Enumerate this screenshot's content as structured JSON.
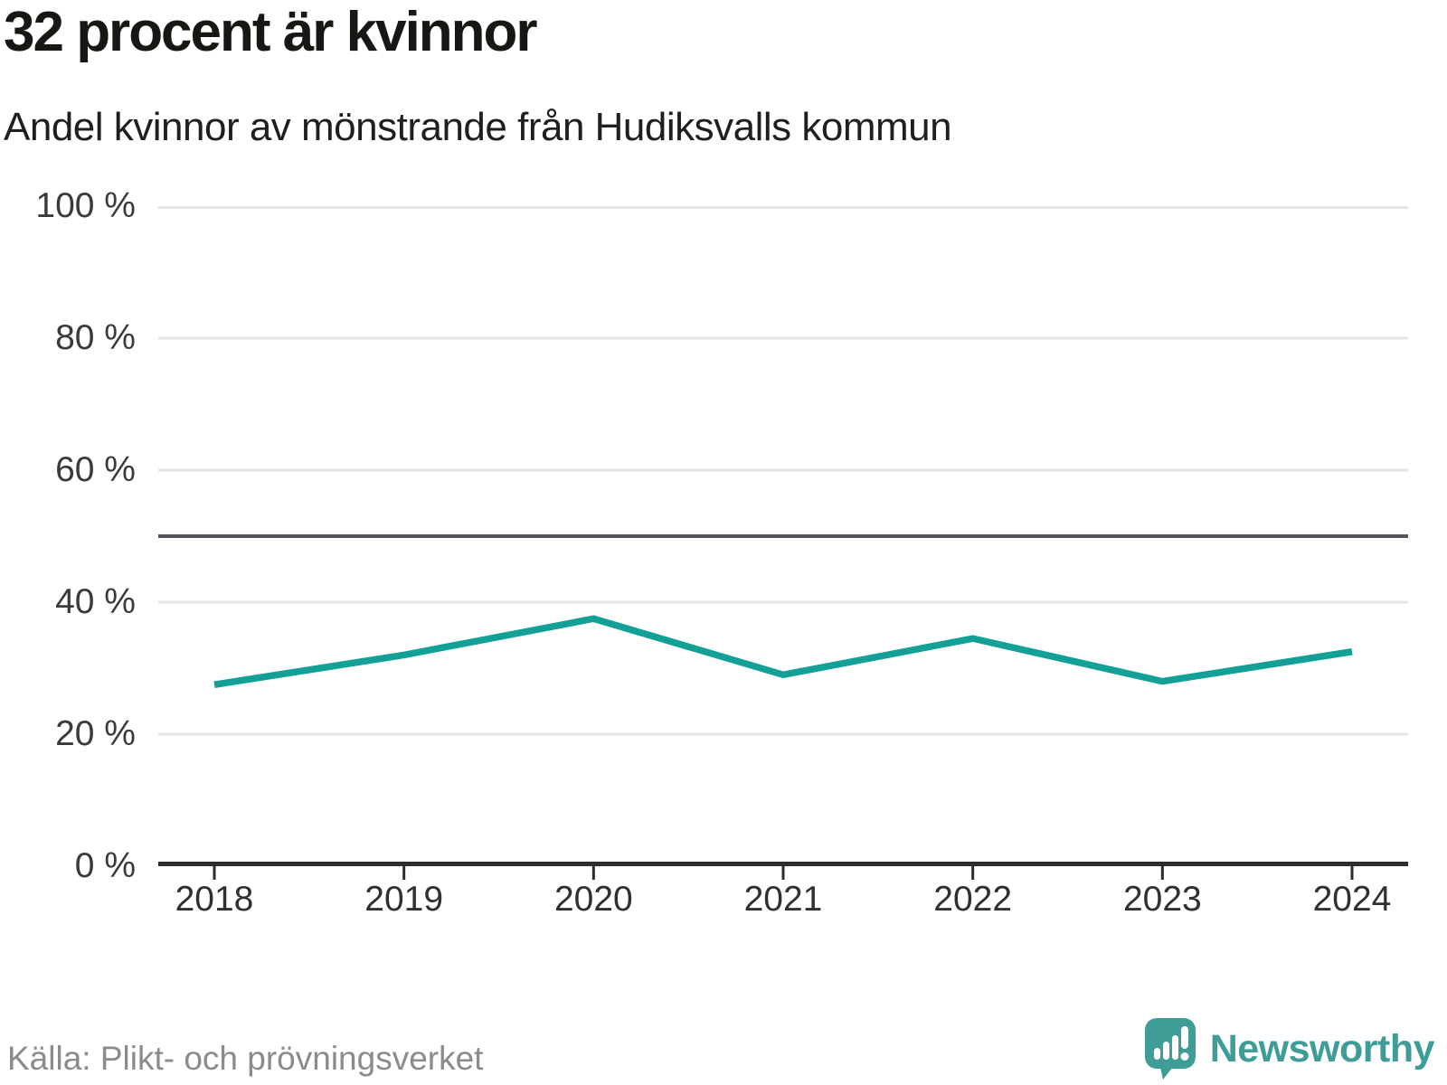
{
  "header": {
    "title": "32 procent är kvinnor",
    "subtitle": "Andel kvinnor av mönstrande från Hudiksvalls kommun"
  },
  "chart_data": {
    "type": "line",
    "title": "32 procent är kvinnor",
    "subtitle": "Andel kvinnor av mönstrande från Hudiksvalls kommun",
    "categories": [
      "2018",
      "2019",
      "2020",
      "2021",
      "2022",
      "2023",
      "2024"
    ],
    "series": [
      {
        "name": "Andel kvinnor av mönstrande",
        "values": [
          27.5,
          32,
          37.5,
          29,
          34.5,
          28,
          32.5
        ]
      }
    ],
    "unit": "%",
    "xlabel": "",
    "ylabel": "",
    "ylim": [
      0,
      100
    ],
    "yticks": [
      {
        "value": 100,
        "label": "100 %"
      },
      {
        "value": 80,
        "label": "80 %"
      },
      {
        "value": 60,
        "label": "60 %"
      },
      {
        "value": 40,
        "label": "40 %"
      },
      {
        "value": 20,
        "label": "20 %"
      },
      {
        "value": 0,
        "label": "0 %"
      }
    ],
    "reference_line": 50,
    "grid": "horizontal",
    "legend": "none",
    "colors": {
      "line": "#13a096",
      "reference_line": "#54545b",
      "axis": "#2d2d2d",
      "gridline": "#e4e4e4",
      "tick_text": "#3a3a3a"
    }
  },
  "footer": {
    "source": "Källa: Plikt- och prövningsverket",
    "logo_text": "Newsworthy",
    "logo_color": "#3f9d98"
  }
}
